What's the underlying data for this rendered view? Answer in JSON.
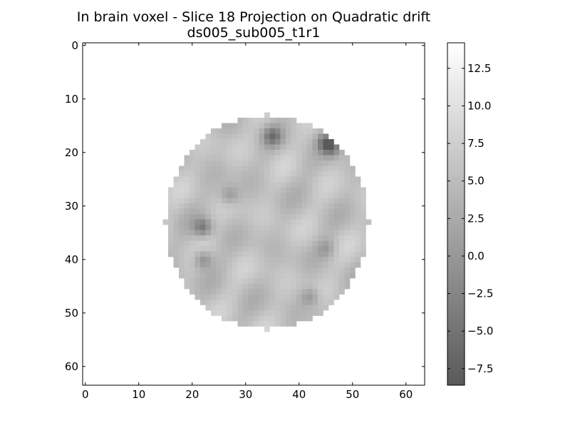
{
  "chart_data": [
    {
      "type": "heatmap",
      "title": "In brain voxel - Slice 18 Projection on Quadratic drift",
      "subtitle": "ds005_sub005_t1r1",
      "xlabel": "",
      "ylabel": "",
      "colormap": "gray",
      "alpha": 0.65,
      "grid": false,
      "xlim": [
        -0.5,
        63.5
      ],
      "ylim": [
        63.5,
        -0.5
      ],
      "x_ticks": [
        "0",
        "10",
        "20",
        "30",
        "40",
        "50",
        "60"
      ],
      "y_ticks": [
        "0",
        "10",
        "20",
        "30",
        "40",
        "50",
        "60"
      ],
      "mask": {
        "shape": "approximately circular region",
        "center": [
          34,
          33
        ],
        "radius_x": 19,
        "radius_y": 20
      },
      "value_range": [
        -8.6,
        14.2
      ],
      "typical_brain_value": 5.5,
      "dark_patches": [
        {
          "row": 17,
          "col": 35,
          "value": -3.5
        },
        {
          "row": 18,
          "col": 45,
          "value": -3.0
        },
        {
          "row": 19,
          "col": 46,
          "value": -4.0
        },
        {
          "row": 34,
          "col": 22,
          "value": -3.5
        },
        {
          "row": 40,
          "col": 22,
          "value": -2.0
        },
        {
          "row": 47,
          "col": 42,
          "value": 0.0
        },
        {
          "row": 28,
          "col": 27,
          "value": 0.0
        },
        {
          "row": 38,
          "col": 45,
          "value": 1.0
        }
      ],
      "colorbar": {
        "orientation": "vertical",
        "range": [
          -8.6,
          14.2
        ],
        "ticks": [
          "12.5",
          "10.0",
          "7.5",
          "5.0",
          "2.5",
          "0.0",
          "−2.5",
          "−5.0",
          "−7.5"
        ]
      }
    }
  ]
}
